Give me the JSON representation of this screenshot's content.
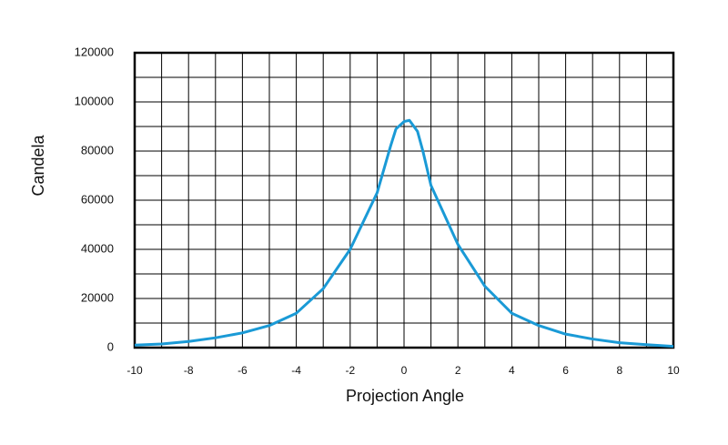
{
  "chart_data": {
    "type": "line",
    "x_label": "Projection Angle",
    "y_label": "Candela",
    "x": [
      -10,
      -9,
      -8,
      -7,
      -6,
      -5,
      -4,
      -3,
      -2,
      -1,
      -0.5,
      -0.3,
      0,
      0.2,
      0.5,
      0.7,
      1,
      2,
      3,
      4,
      5,
      6,
      7,
      8,
      9,
      10
    ],
    "series": [
      {
        "color": "#1a9ad6",
        "values": [
          1000,
          1500,
          2500,
          4000,
          6000,
          9000,
          14000,
          24000,
          40000,
          63000,
          82000,
          89000,
          92000,
          92500,
          88000,
          80000,
          66000,
          42000,
          25000,
          14000,
          9000,
          5500,
          3500,
          2000,
          1200,
          500
        ]
      }
    ],
    "xlim": [
      -10,
      10
    ],
    "xticks": [
      -10,
      -8,
      -6,
      -4,
      -2,
      0,
      2,
      4,
      6,
      8,
      10
    ],
    "ylim": [
      0,
      120000
    ],
    "yticks": [
      0,
      20000,
      40000,
      60000,
      80000,
      100000,
      120000
    ],
    "grid": true
  }
}
